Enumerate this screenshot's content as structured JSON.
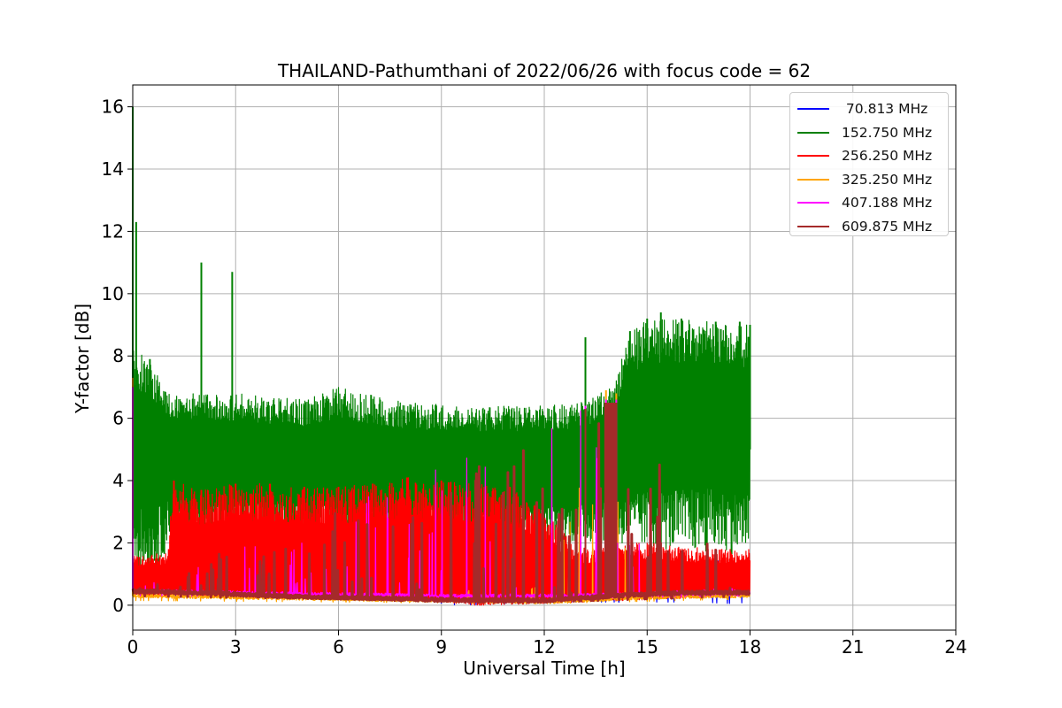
{
  "chart_data": {
    "type": "line",
    "title": "THAILAND-Pathumthani of 2022/06/26 with focus code = 62",
    "xlabel": "Universal Time [h]",
    "ylabel": "Y-factor [dB]",
    "xlim": [
      0,
      24
    ],
    "ylim": [
      -0.8,
      16.7
    ],
    "xticks": [
      0,
      3,
      6,
      9,
      12,
      15,
      18,
      21,
      24
    ],
    "yticks": [
      0,
      2,
      4,
      6,
      8,
      10,
      12,
      14,
      16
    ],
    "grid": true,
    "legend_position": "top-right",
    "x_data_range": [
      0,
      18
    ],
    "series": [
      {
        "name": " 70.813 MHz",
        "color": "#0000ff",
        "baseline": [
          [
            0,
            0.5
          ],
          [
            1,
            0.5
          ],
          [
            2,
            0.55
          ],
          [
            3,
            0.5
          ],
          [
            4,
            0.45
          ],
          [
            5,
            0.35
          ],
          [
            6,
            0.3
          ],
          [
            7,
            0.3
          ],
          [
            8,
            0.3
          ],
          [
            9,
            0.3
          ],
          [
            10,
            0.3
          ],
          [
            11,
            0.25
          ],
          [
            12,
            0.25
          ],
          [
            13,
            0.3
          ],
          [
            14,
            0.35
          ],
          [
            15,
            0.4
          ],
          [
            16,
            0.4
          ],
          [
            17,
            0.4
          ],
          [
            18,
            0.4
          ]
        ],
        "envelope": [
          [
            0,
            1.3
          ],
          [
            0.5,
            1.0
          ],
          [
            1,
            1.0
          ],
          [
            2,
            0.7
          ],
          [
            3,
            0.65
          ],
          [
            4,
            0.55
          ],
          [
            5,
            1.4
          ],
          [
            6,
            1.2
          ],
          [
            7,
            0.6
          ],
          [
            8,
            0.6
          ],
          [
            9,
            0.6
          ],
          [
            10,
            0.7
          ],
          [
            11,
            0.5
          ],
          [
            12,
            0.9
          ],
          [
            13,
            1.3
          ],
          [
            14,
            1.5
          ],
          [
            15,
            1.2
          ],
          [
            16,
            1.3
          ],
          [
            17,
            1.6
          ],
          [
            18,
            0.6
          ]
        ],
        "minimum": [
          [
            0,
            0.3
          ],
          [
            4,
            0.25
          ],
          [
            8,
            0.2
          ],
          [
            9.5,
            0.0
          ],
          [
            12,
            0.1
          ],
          [
            16.5,
            0.1
          ],
          [
            17.5,
            0.05
          ],
          [
            18,
            0.1
          ]
        ]
      },
      {
        "name": "152.750 MHz",
        "color": "#008000",
        "baseline": [
          [
            0,
            4.5
          ],
          [
            1,
            4.5
          ],
          [
            3,
            4.2
          ],
          [
            6,
            4.0
          ],
          [
            9,
            4.0
          ],
          [
            12,
            4.0
          ],
          [
            14,
            4.2
          ],
          [
            15,
            5.0
          ],
          [
            17,
            5.2
          ],
          [
            18,
            5.0
          ]
        ],
        "envelope": [
          [
            0,
            8.3
          ],
          [
            0.5,
            7.9
          ],
          [
            1,
            6.8
          ],
          [
            3,
            6.8
          ],
          [
            5,
            6.6
          ],
          [
            6,
            7.0
          ],
          [
            8,
            6.5
          ],
          [
            10,
            6.4
          ],
          [
            12,
            6.4
          ],
          [
            13,
            6.5
          ],
          [
            14,
            7.0
          ],
          [
            14.5,
            8.8
          ],
          [
            15,
            9.2
          ],
          [
            16,
            9.2
          ],
          [
            17,
            9.1
          ],
          [
            18,
            9.0
          ]
        ],
        "minimum": [
          [
            0,
            1.6
          ],
          [
            0.5,
            0.6
          ],
          [
            1,
            1.8
          ],
          [
            3,
            2.0
          ],
          [
            6,
            2.1
          ],
          [
            9,
            2.0
          ],
          [
            12,
            2.0
          ],
          [
            14,
            2.0
          ],
          [
            15,
            1.8
          ],
          [
            18,
            1.6
          ]
        ],
        "peaks": [
          [
            0,
            16.0
          ],
          [
            0.1,
            12.3
          ],
          [
            2.0,
            11.0
          ],
          [
            2.9,
            10.7
          ],
          [
            13.2,
            8.6
          ],
          [
            15.4,
            9.4
          ],
          [
            17.7,
            9.1
          ]
        ]
      },
      {
        "name": "256.250 MHz",
        "color": "#ff0000",
        "baseline": [
          [
            0,
            0.5
          ],
          [
            3,
            0.4
          ],
          [
            6,
            0.35
          ],
          [
            9,
            0.3
          ],
          [
            12,
            0.3
          ],
          [
            15,
            0.4
          ],
          [
            18,
            0.45
          ]
        ],
        "envelope": [
          [
            0,
            1.6
          ],
          [
            1,
            1.7
          ],
          [
            1.2,
            4.0
          ],
          [
            2,
            3.7
          ],
          [
            3,
            3.9
          ],
          [
            4,
            3.9
          ],
          [
            5,
            3.8
          ],
          [
            6,
            3.8
          ],
          [
            7,
            3.9
          ],
          [
            8,
            4.1
          ],
          [
            9,
            4.0
          ],
          [
            10,
            3.9
          ],
          [
            11,
            3.8
          ],
          [
            12,
            3.0
          ],
          [
            13,
            1.8
          ],
          [
            14,
            2.0
          ],
          [
            15,
            2.0
          ],
          [
            16,
            1.9
          ],
          [
            17,
            1.8
          ],
          [
            18,
            1.8
          ]
        ],
        "minimum": [
          [
            0,
            0.3
          ],
          [
            9,
            0.1
          ],
          [
            10,
            0.0
          ],
          [
            12,
            0.05
          ],
          [
            18,
            0.3
          ]
        ]
      },
      {
        "name": "325.250 MHz",
        "color": "#ffa500",
        "baseline": [
          [
            0,
            0.3
          ],
          [
            3,
            0.25
          ],
          [
            6,
            0.2
          ],
          [
            9,
            0.15
          ],
          [
            12,
            0.1
          ],
          [
            15,
            0.25
          ],
          [
            18,
            0.3
          ]
        ],
        "envelope": [
          [
            0,
            7.3
          ],
          [
            0.2,
            0.5
          ],
          [
            9,
            0.35
          ],
          [
            10,
            0.7
          ],
          [
            12,
            0.6
          ],
          [
            13.8,
            6.9
          ],
          [
            14.1,
            6.8
          ],
          [
            15,
            0.45
          ],
          [
            18,
            0.45
          ]
        ],
        "minimum": [
          [
            0,
            0.15
          ],
          [
            12,
            0.05
          ],
          [
            18,
            0.2
          ]
        ]
      },
      {
        "name": "407.188 MHz",
        "color": "#ff00ff",
        "baseline": [
          [
            0,
            0.45
          ],
          [
            3,
            0.4
          ],
          [
            6,
            0.35
          ],
          [
            9,
            0.3
          ],
          [
            12,
            0.3
          ],
          [
            15,
            0.35
          ],
          [
            18,
            0.4
          ]
        ],
        "envelope": [
          [
            0,
            7.0
          ],
          [
            0.2,
            0.6
          ],
          [
            13.2,
            6.4
          ],
          [
            13.8,
            6.6
          ],
          [
            14.1,
            6.6
          ],
          [
            15,
            0.5
          ],
          [
            18,
            0.55
          ]
        ],
        "minimum": [
          [
            0,
            0.3
          ],
          [
            12,
            0.2
          ],
          [
            18,
            0.3
          ]
        ]
      },
      {
        "name": "609.875 MHz",
        "color": "#a52a2a",
        "baseline": [
          [
            0,
            0.45
          ],
          [
            2,
            0.4
          ],
          [
            4,
            0.3
          ],
          [
            6,
            0.25
          ],
          [
            8,
            0.2
          ],
          [
            10,
            0.15
          ],
          [
            12,
            0.15
          ],
          [
            14,
            0.3
          ],
          [
            16,
            0.4
          ],
          [
            18,
            0.4
          ]
        ],
        "envelope": [
          [
            0,
            0.6
          ],
          [
            13.2,
            6.3
          ],
          [
            13.8,
            6.5
          ],
          [
            14.1,
            6.5
          ],
          [
            18,
            0.55
          ]
        ],
        "minimum": [
          [
            0,
            0.3
          ],
          [
            12,
            0.1
          ],
          [
            18,
            0.3
          ]
        ]
      }
    ]
  }
}
